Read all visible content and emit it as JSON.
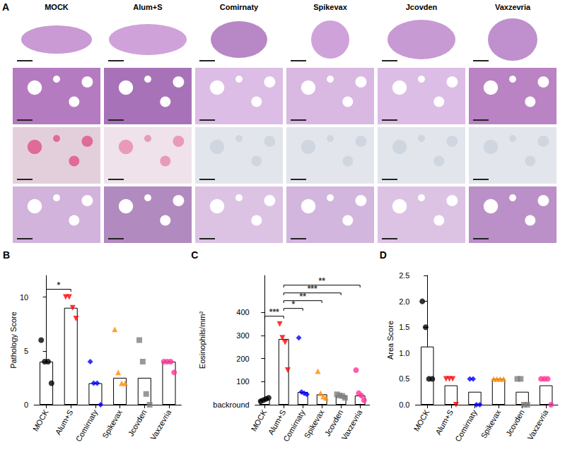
{
  "panel_a": {
    "letter": "A",
    "columns": [
      "MOCK",
      "Alum+S",
      "Comirnaty",
      "Spikevax",
      "Jcovden",
      "Vaxzevria"
    ]
  },
  "chart_data": [
    {
      "letter": "B",
      "type": "bar",
      "ylabel": "Pathology Score",
      "categories": [
        "MOCK",
        "Alum+S",
        "Comirnaty",
        "Spikevax",
        "Jcovden",
        "Vaxzevria"
      ],
      "values": [
        4,
        9,
        2,
        2.5,
        2.5,
        4
      ],
      "points": [
        [
          6,
          4,
          4,
          2
        ],
        [
          10,
          10,
          9,
          8
        ],
        [
          4,
          2,
          2,
          0
        ],
        [
          7,
          3,
          2,
          2
        ],
        [
          6,
          4,
          1,
          0
        ],
        [
          4,
          4,
          4,
          3
        ]
      ],
      "colors": [
        "#000000",
        "#ff0000",
        "#0000ff",
        "#ff8c00",
        "#808080",
        "#ff3399"
      ],
      "markers": [
        "circle",
        "triangle_down",
        "diamond",
        "triangle",
        "square",
        "circle"
      ],
      "ylim": [
        0,
        12
      ],
      "yticks": [
        0,
        5,
        10
      ],
      "grid": false,
      "annotations": [
        {
          "from": "MOCK",
          "to": "Alum+S",
          "label": "*"
        }
      ]
    },
    {
      "letter": "C",
      "type": "bar",
      "ylabel": "Eosinophils/mm²",
      "categories": [
        "MOCK",
        "Alum+S",
        "Comirnaty",
        "Spikevax",
        "Jcovden",
        "Vaxzevria"
      ],
      "values": [
        22,
        285,
        55,
        45,
        40,
        40
      ],
      "points": [
        [
          15,
          20,
          25,
          30
        ],
        [
          350,
          290,
          270,
          150
        ],
        [
          290,
          55,
          50,
          45
        ],
        [
          145,
          50,
          35,
          30
        ],
        [
          45,
          40,
          38,
          30
        ],
        [
          150,
          50,
          40,
          20
        ]
      ],
      "colors": [
        "#000000",
        "#ff0000",
        "#0000ff",
        "#ff8c00",
        "#808080",
        "#ff3399"
      ],
      "markers": [
        "circle",
        "triangle_down",
        "diamond",
        "triangle",
        "square",
        "circle"
      ],
      "ylim": [
        0,
        560
      ],
      "yticks": [
        {
          "value": 0,
          "label": "backround"
        },
        100,
        200,
        300,
        400
      ],
      "grid": false,
      "annotations": [
        {
          "from": "MOCK",
          "to": "Alum+S",
          "label": "***"
        },
        {
          "from": "Alum+S",
          "to": "Comirnaty",
          "label": "*"
        },
        {
          "from": "Alum+S",
          "to": "Spikevax",
          "label": "**"
        },
        {
          "from": "Alum+S",
          "to": "Jcovden",
          "label": "***"
        },
        {
          "from": "Alum+S",
          "to": "Vaxzevria",
          "label": "**"
        }
      ]
    },
    {
      "letter": "D",
      "type": "bar",
      "ylabel": "Area Score",
      "categories": [
        "MOCK",
        "Alum+S",
        "Comirnaty",
        "Spikevax",
        "Jcovden",
        "Vaxzevria"
      ],
      "values": [
        1.125,
        0.375,
        0.25,
        0.5,
        0.25,
        0.375
      ],
      "points": [
        [
          2,
          1.5,
          0.5,
          0.5
        ],
        [
          0.5,
          0.5,
          0.5,
          0
        ],
        [
          0.5,
          0.5,
          0,
          0
        ],
        [
          0.5,
          0.5,
          0.5,
          0.5
        ],
        [
          0.5,
          0.5,
          0,
          0
        ],
        [
          0.5,
          0.5,
          0.5,
          0
        ]
      ],
      "colors": [
        "#000000",
        "#ff0000",
        "#0000ff",
        "#ff8c00",
        "#808080",
        "#ff3399"
      ],
      "markers": [
        "circle",
        "triangle_down",
        "diamond",
        "triangle",
        "square",
        "circle"
      ],
      "ylim": [
        0,
        2.5
      ],
      "yticks": [
        {
          "value": 0,
          "label": "0.0"
        },
        {
          "value": 0.5,
          "label": "0.5"
        },
        {
          "value": 1,
          "label": "1.0"
        },
        {
          "value": 1.5,
          "label": "1.5"
        },
        {
          "value": 2,
          "label": "2.0"
        },
        {
          "value": 2.5,
          "label": "2.5"
        }
      ],
      "grid": false,
      "annotations": []
    }
  ]
}
